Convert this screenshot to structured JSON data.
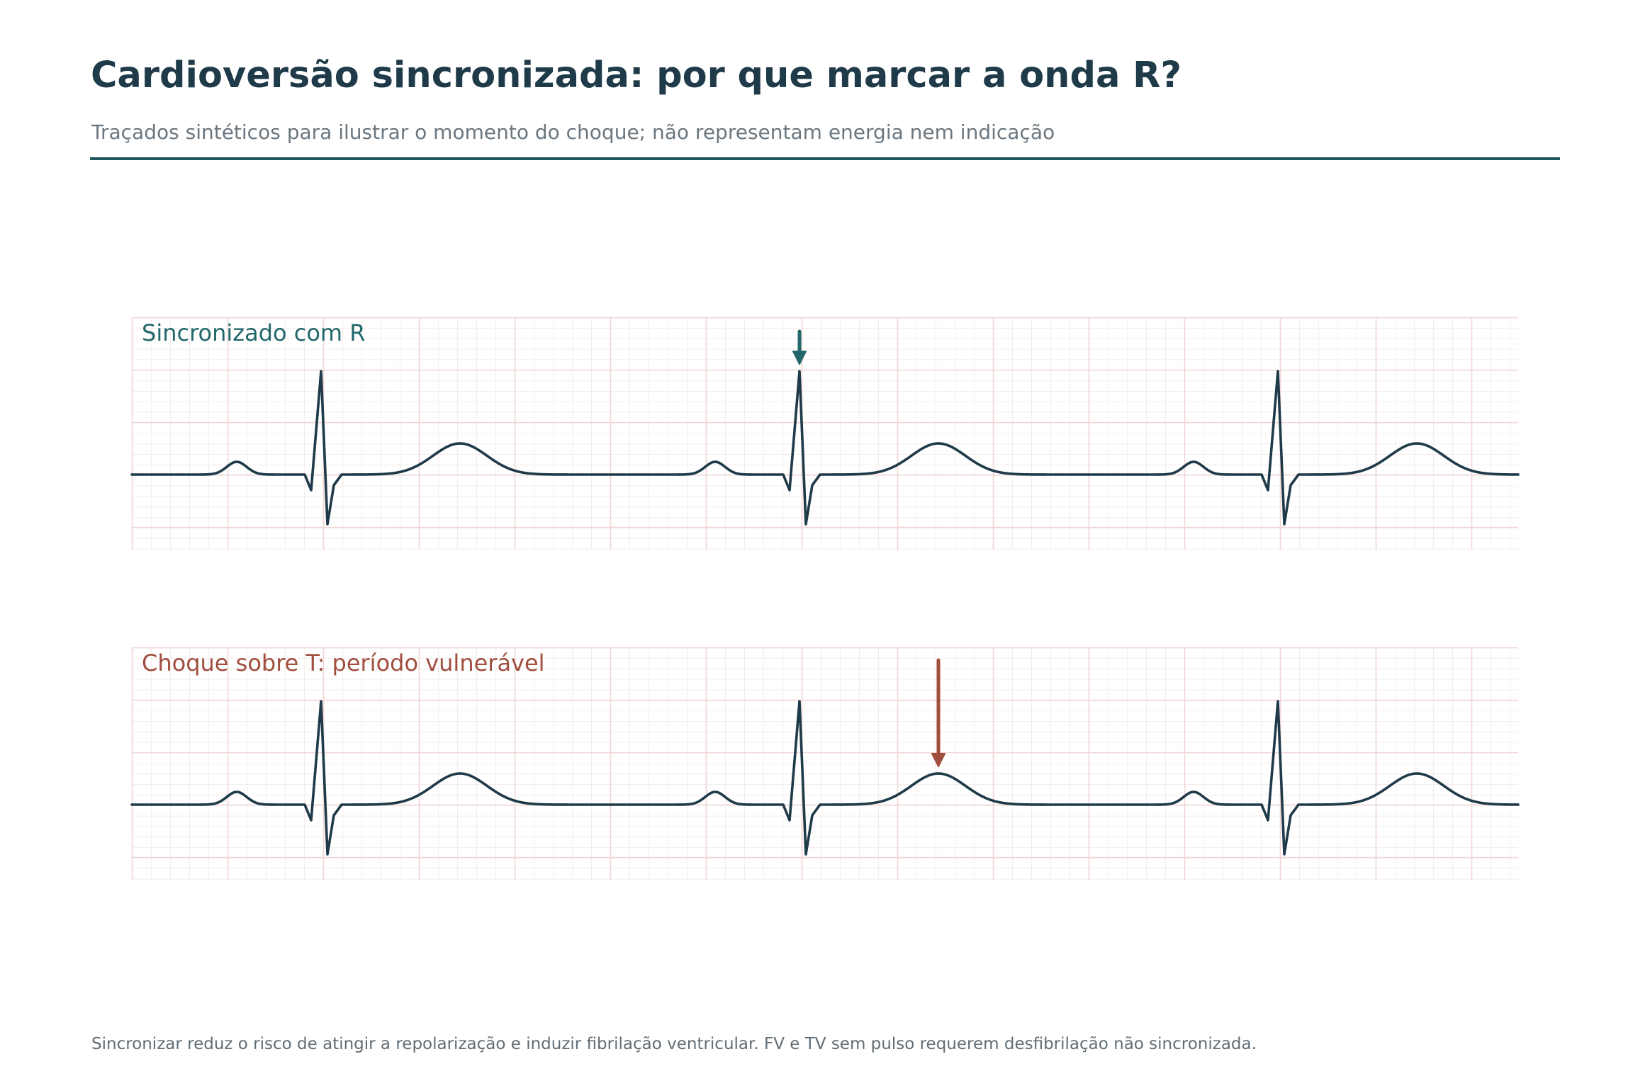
{
  "header": {
    "title": "Cardioversão sincronizada: por que marcar a onda R?",
    "subtitle": "Traçados sintéticos para ilustrar o momento do choque; não representam energia nem indicação"
  },
  "colors": {
    "title": "#1f3a48",
    "subtitle": "#6b7780",
    "accent_rule": "#22595f",
    "trace": "#1f3a48",
    "synchronized": "#22686a",
    "unsynchronized": "#a04f3e",
    "grid_major": "#f0d6d6",
    "grid_minor": "#f6ecec",
    "footnote": "#616d75"
  },
  "panels": [
    {
      "label": "Sincronizado com R",
      "shock_marker": "on-r-wave",
      "marker_beat": 2,
      "color": "#22686a",
      "icon": "arrow-down-icon"
    },
    {
      "label": "Choque sobre T: período vulnerável",
      "shock_marker": "on-t-wave",
      "marker_beat": 2,
      "color": "#a04f3e",
      "icon": "arrow-down-icon"
    }
  ],
  "ecg": {
    "beats": 3
  },
  "footnote": "Sincronizar reduz o risco de atingir a repolarização e induzir fibrilação ventricular. FV e TV sem pulso requerem desfibrilação não sincronizada."
}
